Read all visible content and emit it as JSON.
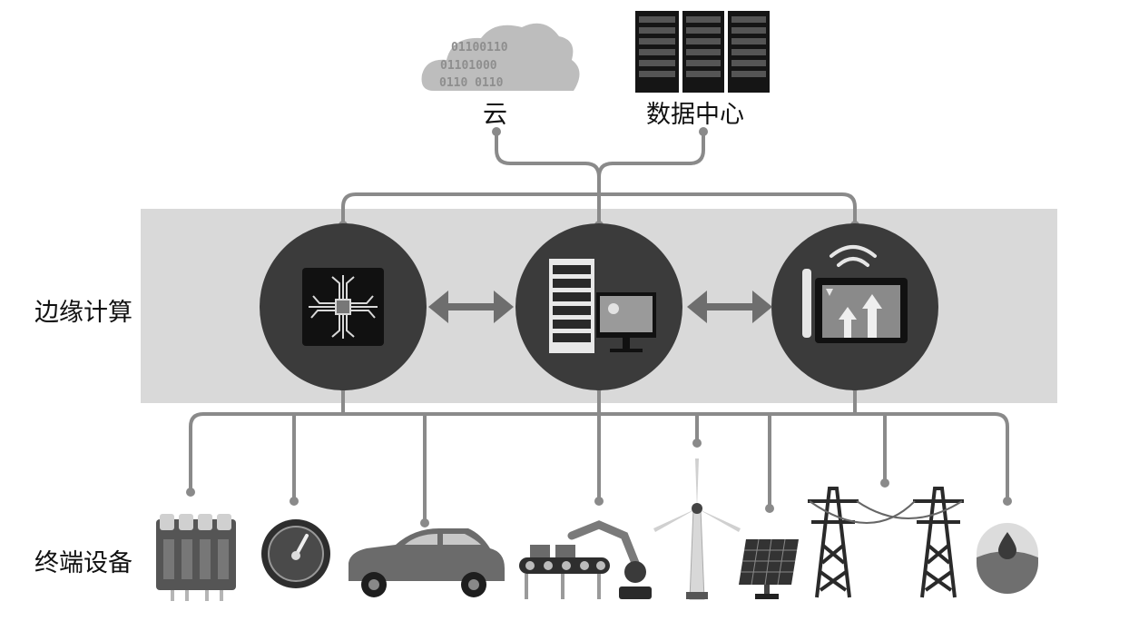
{
  "labels": {
    "cloud": "云",
    "data_center": "数据中心",
    "edge_computing": "边缘计算",
    "terminal_devices": "终端设备"
  },
  "cloud_binary_text": [
    "01100110",
    "01101000",
    "0110 0110"
  ],
  "colors": {
    "band": "#d9d9d9",
    "line": "#8a8a8a",
    "circle": "#3b3b3b",
    "dark": "#1c1c1c",
    "arrow": "#6e6e6e"
  },
  "icons": {
    "cloud": "cloud-icon",
    "data_center": "server-rack-icon",
    "edge_nodes": [
      "chip-icon",
      "server-monitor-icon",
      "wireless-tablet-icon"
    ],
    "devices": [
      "battery-pack-icon",
      "gauge-icon",
      "car-icon",
      "robot-arm-conveyor-icon",
      "wind-turbine-icon",
      "solar-panel-icon",
      "power-tower-icon",
      "water-drop-icon"
    ]
  }
}
